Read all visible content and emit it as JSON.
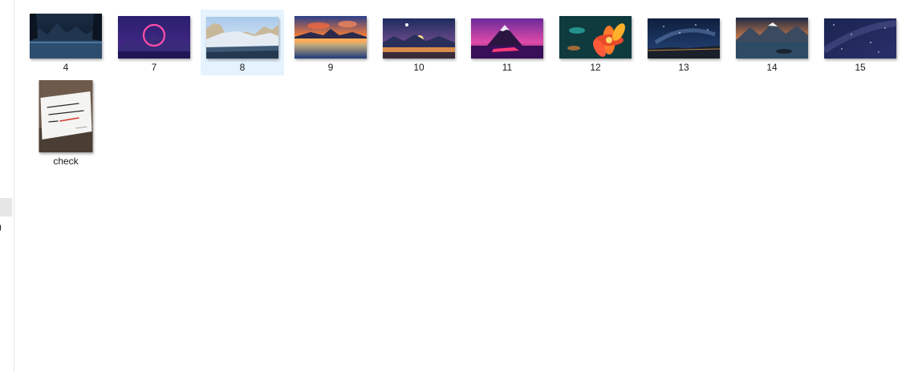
{
  "nav": {
    "fragment": ")"
  },
  "files": [
    {
      "name": "4",
      "thumb": "dark-mountain-lake-icon",
      "selected": false
    },
    {
      "name": "7",
      "thumb": "neon-ring-mountains-icon",
      "selected": false
    },
    {
      "name": "8",
      "thumb": "yosemite-valley-icon",
      "selected": true
    },
    {
      "name": "9",
      "thumb": "sunset-lake-reflection-icon",
      "selected": false
    },
    {
      "name": "10",
      "thumb": "moon-sunset-lake-icon",
      "selected": false
    },
    {
      "name": "11",
      "thumb": "synthwave-mountain-car-icon",
      "selected": false
    },
    {
      "name": "12",
      "thumb": "colorful-flower-art-icon",
      "selected": false
    },
    {
      "name": "13",
      "thumb": "night-sky-coast-icon",
      "selected": false
    },
    {
      "name": "14",
      "thumb": "mountain-lake-dusk-icon",
      "selected": false
    },
    {
      "name": "15",
      "thumb": "starry-night-sky-icon",
      "selected": false
    },
    {
      "name": "check",
      "thumb": "handwritten-note-photo-icon",
      "selected": false
    }
  ]
}
